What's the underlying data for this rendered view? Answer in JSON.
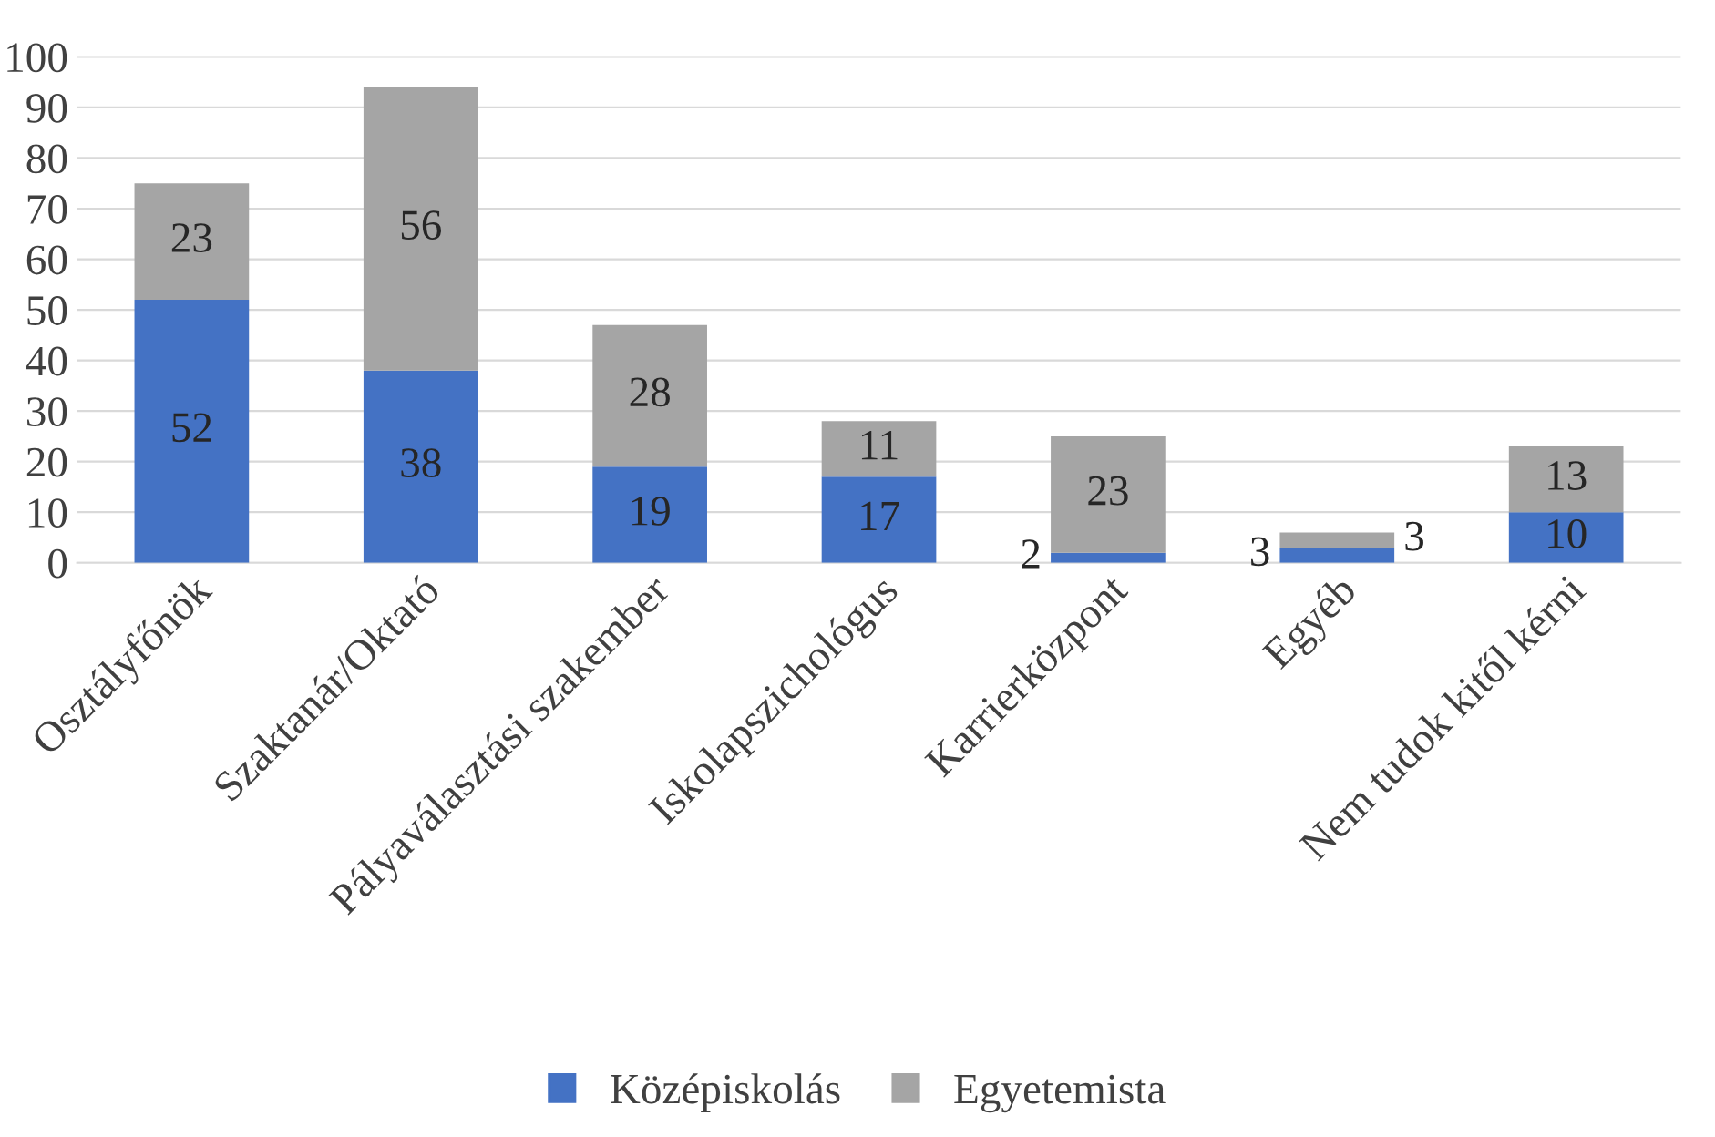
{
  "chart_data": {
    "type": "bar",
    "stacked": true,
    "data_labels": true,
    "grid": "y",
    "legend": "bottom",
    "categories": [
      "Osztályfőnök",
      "Szaktanár/Oktató",
      "Pályaválasztási szakember",
      "Iskolapszichológus",
      "Karrierközpont",
      "Egyéb",
      "Nem tudok kitől kérni"
    ],
    "series": [
      {
        "name": "Középiskolás",
        "color": "#4472c4",
        "values": [
          52,
          38,
          19,
          17,
          2,
          3,
          10
        ]
      },
      {
        "name": "Egyetemista",
        "color": "#a5a5a5",
        "values": [
          23,
          56,
          28,
          11,
          23,
          3,
          13
        ]
      }
    ],
    "ylim": [
      0,
      100
    ],
    "yticks": [
      0,
      10,
      20,
      30,
      40,
      50,
      60,
      70,
      80,
      90,
      100
    ]
  }
}
